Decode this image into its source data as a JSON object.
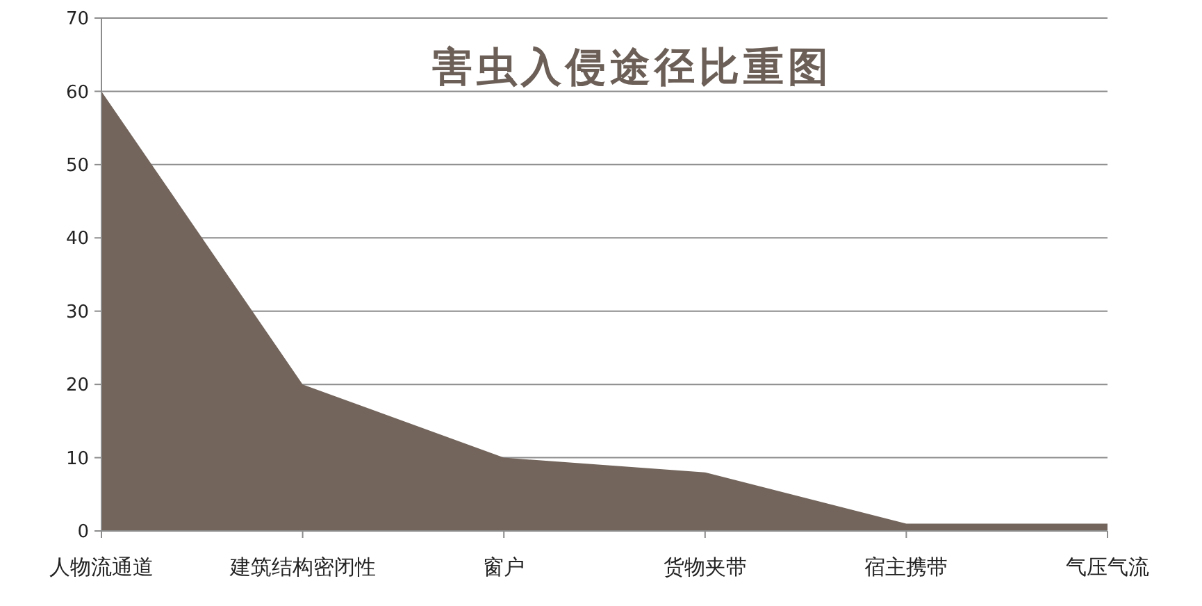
{
  "chart_data": {
    "type": "area",
    "title": "害虫入侵途径比重图",
    "categories": [
      "人物流通道",
      "建筑结构密闭性",
      "窗户",
      "货物夹带",
      "宿主携带",
      "气压气流"
    ],
    "values": [
      60,
      20,
      10,
      8,
      1,
      1
    ],
    "color": "#73655c",
    "ylim": [
      0,
      70
    ],
    "yticks": [
      0,
      10,
      20,
      30,
      40,
      50,
      60,
      70
    ],
    "grid": "y"
  }
}
